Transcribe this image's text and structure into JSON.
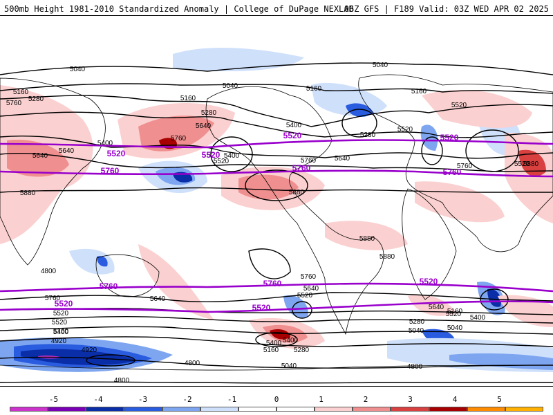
{
  "header": {
    "left": "500mb Height 1981-2010 Standardized Anomaly | College of DuPage NEXLAB",
    "right": "06Z GFS | F189 Valid: 03Z WED APR 02 2025"
  },
  "map": {
    "ocean_color": "#ffffff",
    "land_outline_color": "#000000",
    "contour_color": "#000000",
    "highlight_contour_color": "#9900cc",
    "contour_labels": [
      "5040",
      "5040",
      "5040",
      "5160",
      "5160",
      "5160",
      "5160",
      "5280",
      "5280",
      "5280",
      "5400",
      "5400",
      "5400",
      "5520",
      "5520",
      "5520",
      "5520",
      "5640",
      "5640",
      "5640",
      "5640",
      "5760",
      "5760",
      "5760",
      "5760",
      "5880",
      "5880",
      "5880",
      "5880",
      "5880",
      "5760",
      "5760",
      "5640",
      "5640",
      "5640",
      "5520",
      "5520",
      "5520",
      "5520",
      "5400",
      "5400",
      "5400",
      "5400",
      "5280",
      "5280",
      "5160",
      "5160",
      "5160",
      "5040",
      "5040",
      "5040",
      "4920",
      "4920",
      "4800",
      "4800",
      "4800",
      "4800"
    ],
    "highlight_labels": [
      "5520",
      "5520",
      "5520",
      "5520",
      "5760",
      "5760",
      "5760",
      "5760",
      "5760",
      "5520",
      "5520",
      "5520"
    ]
  },
  "colorbar": {
    "ticks": [
      "-5",
      "-4",
      "-3",
      "-2",
      "-1",
      "0",
      "1",
      "2",
      "3",
      "4",
      "5"
    ],
    "colors": [
      "#cc33cc",
      "#7a00b8",
      "#0a2ea8",
      "#2a5ce0",
      "#7ea6f0",
      "#cfe0fb",
      "#ffffff",
      "#ffffff",
      "#fbd0d0",
      "#f08f8f",
      "#d94040",
      "#a80000",
      "#ff8c00",
      "#ffb000"
    ]
  }
}
